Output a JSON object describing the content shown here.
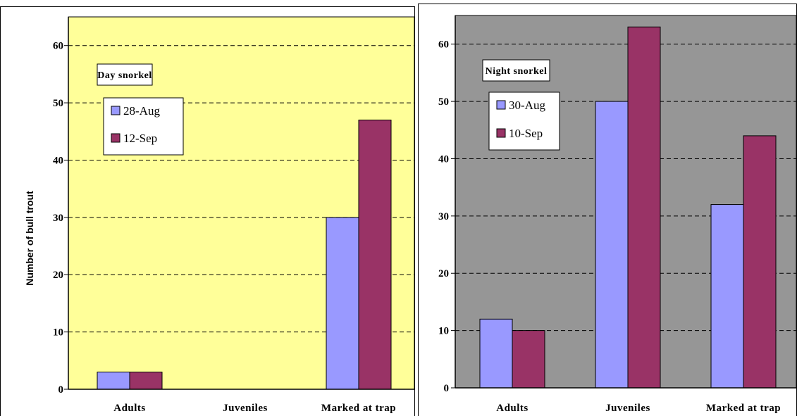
{
  "chart_data": [
    {
      "type": "bar",
      "title": "Day snorkel",
      "ylabel": "Number of bull trout",
      "categories": [
        "Adults",
        "Juveniles",
        "Marked at trap"
      ],
      "series": [
        {
          "name": "28-Aug",
          "values": [
            3,
            0,
            30
          ]
        },
        {
          "name": "12-Sep",
          "values": [
            3,
            0,
            47
          ]
        }
      ],
      "ylim": [
        0,
        65
      ],
      "yticks": [
        0,
        10,
        20,
        30,
        40,
        50,
        60
      ],
      "grid": true,
      "legend": "top-left",
      "background": "#FFFF99",
      "colors": [
        "#9999FF",
        "#993366"
      ]
    },
    {
      "type": "bar",
      "title": "Night snorkel",
      "ylabel": "",
      "categories": [
        "Adults",
        "Juveniles",
        "Marked at trap"
      ],
      "series": [
        {
          "name": "30-Aug",
          "values": [
            12,
            50,
            32
          ]
        },
        {
          "name": "10-Sep",
          "values": [
            10,
            63,
            44
          ]
        }
      ],
      "ylim": [
        0,
        65
      ],
      "yticks": [
        0,
        10,
        20,
        30,
        40,
        50,
        60
      ],
      "grid": true,
      "legend": "top-left",
      "background": "#969696",
      "colors": [
        "#9999FF",
        "#993366"
      ]
    }
  ]
}
